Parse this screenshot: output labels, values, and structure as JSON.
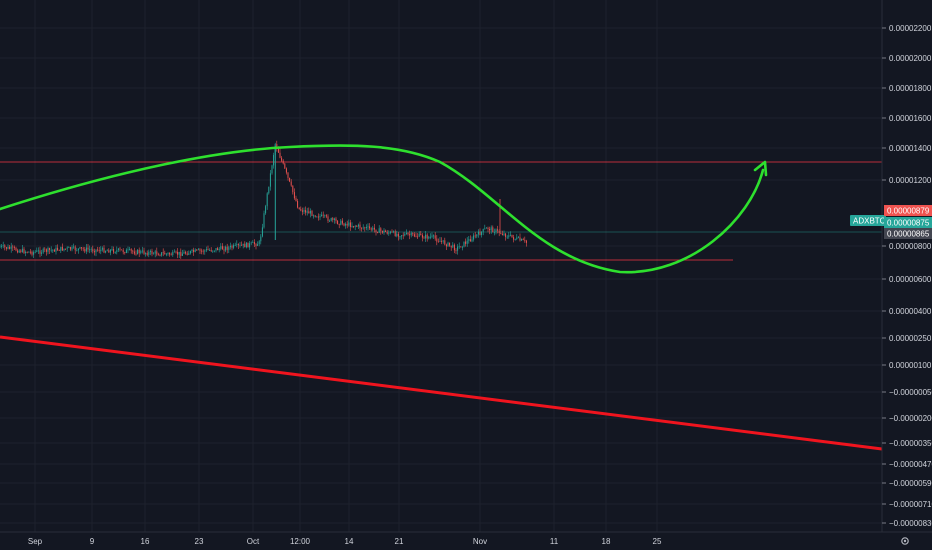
{
  "chart_data": {
    "type": "candlestick",
    "symbol": "ADXBTC",
    "y_axis": {
      "ticks": [
        {
          "label": "0.00002200",
          "value": 2.2e-05
        },
        {
          "label": "0.00002000",
          "value": 2e-05
        },
        {
          "label": "0.00001800",
          "value": 1.8e-05
        },
        {
          "label": "0.00001600",
          "value": 1.6e-05
        },
        {
          "label": "0.00001400",
          "value": 1.4e-05
        },
        {
          "label": "0.00001200",
          "value": 1.2e-05
        },
        {
          "label": "0.00000800",
          "value": 8e-06
        },
        {
          "label": "0.00000600",
          "value": 6e-06
        },
        {
          "label": "0.00000400",
          "value": 4e-06
        },
        {
          "label": "0.00000250",
          "value": 2.5e-06
        },
        {
          "label": "0.00000100",
          "value": 1e-06
        },
        {
          "label": "−0.00000050",
          "value": -5e-07
        },
        {
          "label": "−0.00000200",
          "value": -2e-06
        },
        {
          "label": "−0.00000350",
          "value": -3.5e-06
        },
        {
          "label": "−0.00000470",
          "value": -4.7e-06
        },
        {
          "label": "−0.00000590",
          "value": -5.9e-06
        },
        {
          "label": "−0.00000710",
          "value": -7.1e-06
        },
        {
          "label": "−0.00000830",
          "value": -8.3e-06
        }
      ]
    },
    "x_axis": {
      "ticks": [
        "Sep",
        "9",
        "16",
        "23",
        "Oct",
        "12:00",
        "14",
        "21",
        "Nov",
        "11",
        "18",
        "25"
      ]
    },
    "price_tags": [
      {
        "label": "0.00000879",
        "color": "#ef5350"
      },
      {
        "label": "0.00000875",
        "color": "#26a69a"
      },
      {
        "label": "0.00000865",
        "color": "#434651"
      }
    ],
    "price_series": [
      {
        "date": "2019-09-01",
        "price": 8.5e-06
      },
      {
        "date": "2019-09-05",
        "price": 8.2e-06
      },
      {
        "date": "2019-09-09",
        "price": 8.4e-06
      },
      {
        "date": "2019-09-16",
        "price": 8.3e-06
      },
      {
        "date": "2019-09-23",
        "price": 8.1e-06
      },
      {
        "date": "2019-10-01",
        "price": 8.5e-06
      },
      {
        "date": "2019-10-04",
        "price": 8.7e-06
      },
      {
        "date": "2019-10-06",
        "price": 1.4e-05
      },
      {
        "date": "2019-10-09",
        "price": 1.05e-05
      },
      {
        "date": "2019-10-14",
        "price": 9.8e-06
      },
      {
        "date": "2019-10-21",
        "price": 9.2e-06
      },
      {
        "date": "2019-10-26",
        "price": 9e-06
      },
      {
        "date": "2019-10-29",
        "price": 8.4e-06
      },
      {
        "date": "2019-11-02",
        "price": 9.5e-06
      },
      {
        "date": "2019-11-07",
        "price": 8.7e-06
      }
    ],
    "horizontal_lines": [
      {
        "price": 1.3e-05,
        "color": "#f23645"
      },
      {
        "price": 7.8e-06,
        "color": "#f23645"
      },
      {
        "price": 8.7e-06,
        "color": "#26a69a"
      }
    ],
    "grid": true,
    "theme": "dark"
  }
}
